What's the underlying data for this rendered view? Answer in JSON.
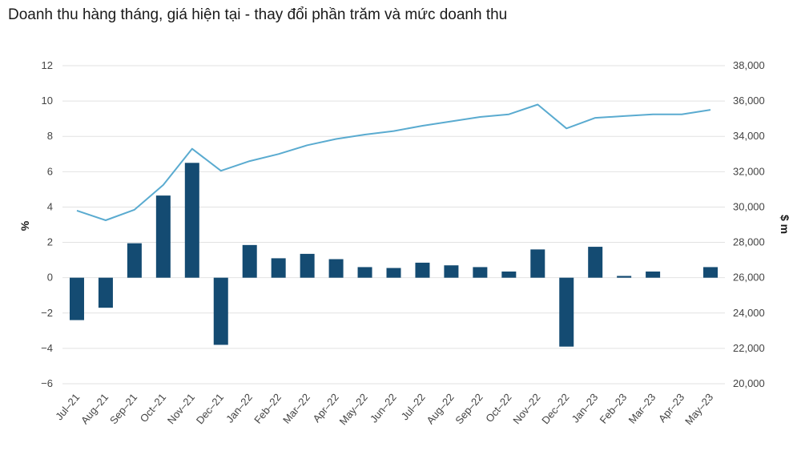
{
  "header": {
    "title": "Doanh thu hàng tháng, giá hiện tại - thay đổi phần trăm và mức doanh thu"
  },
  "chart_data": {
    "type": "bar",
    "title": "Doanh thu hàng tháng, giá hiện tại - thay đổi phần trăm và mức doanh thu",
    "ylabel": "%",
    "y2label": "$ m",
    "ylim": [
      -6,
      12
    ],
    "y2lim": [
      20000,
      38000
    ],
    "yticks": [
      "12",
      "10",
      "8",
      "6",
      "4",
      "2",
      "0",
      "−2",
      "−4",
      "−6"
    ],
    "y2ticks": [
      "38,000",
      "36,000",
      "34,000",
      "32,000",
      "30,000",
      "28,000",
      "26,000",
      "24,000",
      "22,000",
      "20,000"
    ],
    "grid": true,
    "categories": [
      "Jul–21",
      "Aug–21",
      "Sep–21",
      "Oct–21",
      "Nov–21",
      "Dec–21",
      "Jan–22",
      "Feb–22",
      "Mar–22",
      "Apr–22",
      "May–22",
      "Jun–22",
      "Jul–22",
      "Aug–22",
      "Sep–22",
      "Oct–22",
      "Nov–22",
      "Dec–22",
      "Jan–23",
      "Feb–23",
      "Mar–23",
      "Apr–23",
      "May–23"
    ],
    "series": [
      {
        "type": "bar",
        "axis": "left",
        "color": "#144b72",
        "values": [
          -2.4,
          -1.7,
          1.95,
          4.65,
          6.5,
          -3.8,
          1.85,
          1.1,
          1.35,
          1.05,
          0.6,
          0.55,
          0.85,
          0.7,
          0.6,
          0.35,
          1.6,
          -3.9,
          1.75,
          0.1,
          0.35,
          0.0,
          0.6
        ]
      },
      {
        "type": "line",
        "axis": "right",
        "color": "#5aabd0",
        "values": [
          29800,
          29250,
          29850,
          31250,
          33300,
          32050,
          32600,
          33000,
          33500,
          33850,
          34100,
          34300,
          34600,
          34850,
          35100,
          35250,
          35800,
          34450,
          35050,
          35150,
          35250,
          35250,
          35500
        ]
      }
    ]
  }
}
